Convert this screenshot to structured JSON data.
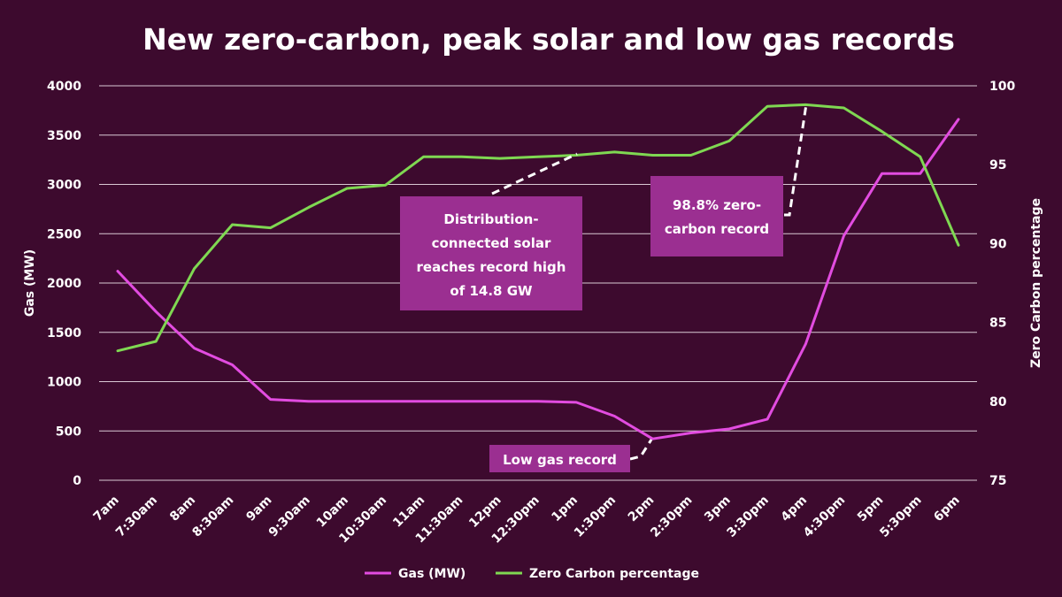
{
  "chart_data": {
    "type": "line",
    "title": "New zero-carbon, peak solar and low gas records",
    "xlabel": "",
    "ylabel": "Gas (MW)",
    "y2label": "Zero Carbon percentage",
    "categories": [
      "7am",
      "7:30am",
      "8am",
      "8:30am",
      "9am",
      "9:30am",
      "10am",
      "10:30am",
      "11am",
      "11:30am",
      "12pm",
      "12:30pm",
      "1pm",
      "1:30pm",
      "2pm",
      "2:30pm",
      "3pm",
      "3:30pm",
      "4pm",
      "4:30pm",
      "5pm",
      "5:30pm",
      "6pm"
    ],
    "ylim": [
      0,
      4000
    ],
    "yticks": [
      "0",
      "500",
      "1000",
      "1500",
      "2000",
      "2500",
      "3000",
      "3500",
      "4000"
    ],
    "y2lim": [
      75,
      100
    ],
    "y2ticks": [
      "75",
      "80",
      "85",
      "90",
      "95",
      "100"
    ],
    "grid": true,
    "legend_position": "bottom",
    "series": [
      {
        "name": "Gas (MW)",
        "axis": "left",
        "color": "#e24ce0",
        "values": [
          2120,
          1710,
          1340,
          1170,
          820,
          800,
          800,
          800,
          800,
          800,
          800,
          800,
          790,
          650,
          420,
          480,
          520,
          620,
          1380,
          2480,
          3110,
          3110,
          3660
        ]
      },
      {
        "name": "Zero Carbon percentage",
        "axis": "right",
        "color": "#7fd852",
        "values": [
          83.2,
          83.8,
          88.4,
          91.2,
          91.0,
          92.3,
          93.5,
          93.7,
          95.5,
          95.5,
          95.4,
          95.5,
          95.6,
          95.8,
          95.6,
          95.6,
          96.5,
          98.7,
          98.8,
          98.6,
          97.1,
          95.5,
          89.9
        ]
      }
    ],
    "annotations": [
      {
        "id": "solar",
        "lines": [
          "Distribution-",
          "connected solar",
          "reaches record high",
          "of 14.8 GW"
        ]
      },
      {
        "id": "zerocarbon",
        "lines": [
          "98.8% zero-",
          "carbon record"
        ]
      },
      {
        "id": "lowgas",
        "lines": [
          "Low gas record"
        ]
      }
    ]
  }
}
